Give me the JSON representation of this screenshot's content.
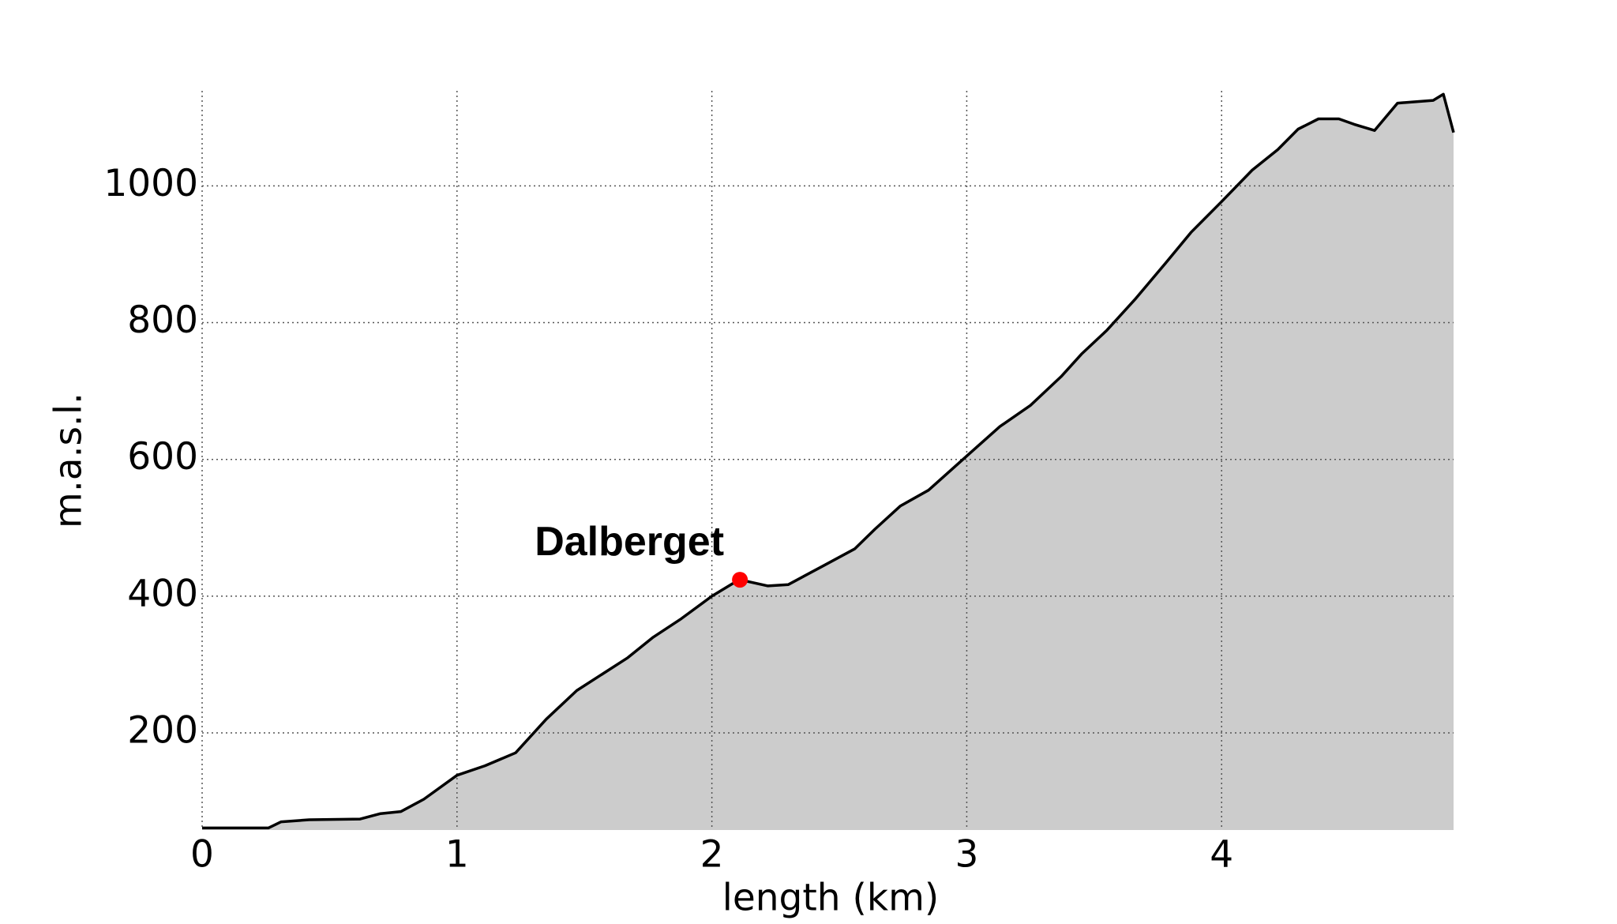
{
  "chart_data": {
    "type": "area",
    "x_label": "length (km)",
    "y_label": "m.a.s.l.",
    "x": [
      0,
      0.26,
      0.31,
      0.42,
      0.62,
      0.7,
      0.78,
      0.87,
      1.0,
      1.11,
      1.23,
      1.35,
      1.47,
      1.57,
      1.67,
      1.77,
      1.88,
      2.0,
      2.08,
      2.11,
      2.22,
      2.3,
      2.44,
      2.56,
      2.64,
      2.74,
      2.85,
      3.0,
      3.13,
      3.25,
      3.37,
      3.45,
      3.55,
      3.66,
      3.78,
      3.88,
      4.0,
      4.12,
      4.22,
      4.3,
      4.38,
      4.46,
      4.52,
      4.6,
      4.69,
      4.83,
      4.87,
      4.91
    ],
    "series": [
      {
        "color": "#000000",
        "fill": "#cccccc",
        "values": [
          61,
          61,
          70,
          73,
          74,
          82,
          85,
          103,
          138,
          152,
          171,
          220,
          262,
          286,
          310,
          340,
          367,
          400,
          418,
          424,
          415,
          417,
          445,
          469,
          498,
          532,
          555,
          605,
          648,
          679,
          721,
          754,
          789,
          834,
          887,
          932,
          977,
          1023,
          1053,
          1083,
          1098,
          1098,
          1090,
          1081,
          1121,
          1125,
          1134,
          1078
        ]
      }
    ],
    "annotation": {
      "label": "Dalberget",
      "x": 2.11,
      "y": 424,
      "color": "#ff0000"
    },
    "xlim": [
      0,
      4.91
    ],
    "ylim": [
      58,
      1139
    ],
    "xticks": [
      0,
      1,
      2,
      3,
      4
    ],
    "yticks": [
      200,
      400,
      600,
      800,
      1000
    ],
    "grid": true
  }
}
